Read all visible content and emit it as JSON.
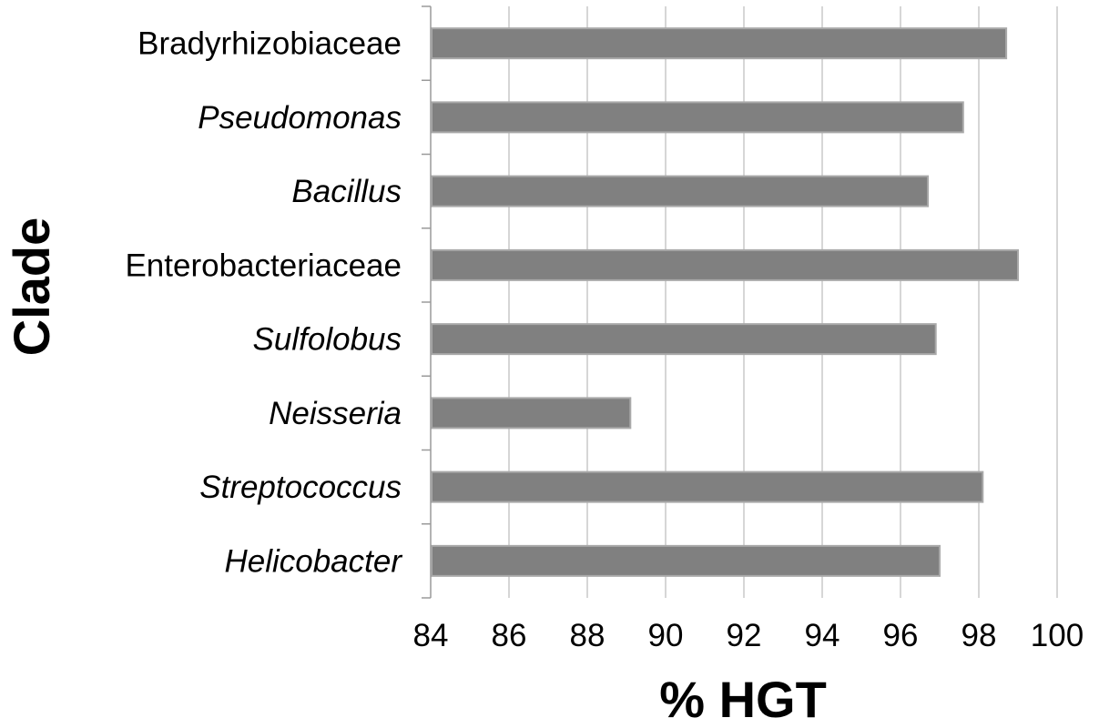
{
  "chart_data": {
    "type": "bar",
    "orientation": "horizontal",
    "categories": [
      "Bradyrhizobiaceae",
      "Pseudomonas",
      "Bacillus",
      "Enterobacteriaceae",
      "Sulfolobus",
      "Neisseria",
      "Streptococcus",
      "Helicobacter"
    ],
    "italic_categories": [
      false,
      true,
      true,
      false,
      true,
      true,
      true,
      true
    ],
    "values": [
      98.7,
      97.6,
      96.7,
      99.0,
      96.9,
      89.1,
      98.1,
      97.0
    ],
    "xlabel": "% HGT",
    "ylabel": "Clade",
    "xlim": [
      84,
      100
    ],
    "xticks": [
      "84",
      "86",
      "88",
      "90",
      "92",
      "94",
      "96",
      "98",
      "100"
    ],
    "grid": "vertical",
    "legend": "none",
    "colors": {
      "bar_fill": "#808080",
      "bar_border": "#a9a9a9",
      "grid": "#c8c8c8",
      "axis": "#9a9a9a"
    }
  }
}
